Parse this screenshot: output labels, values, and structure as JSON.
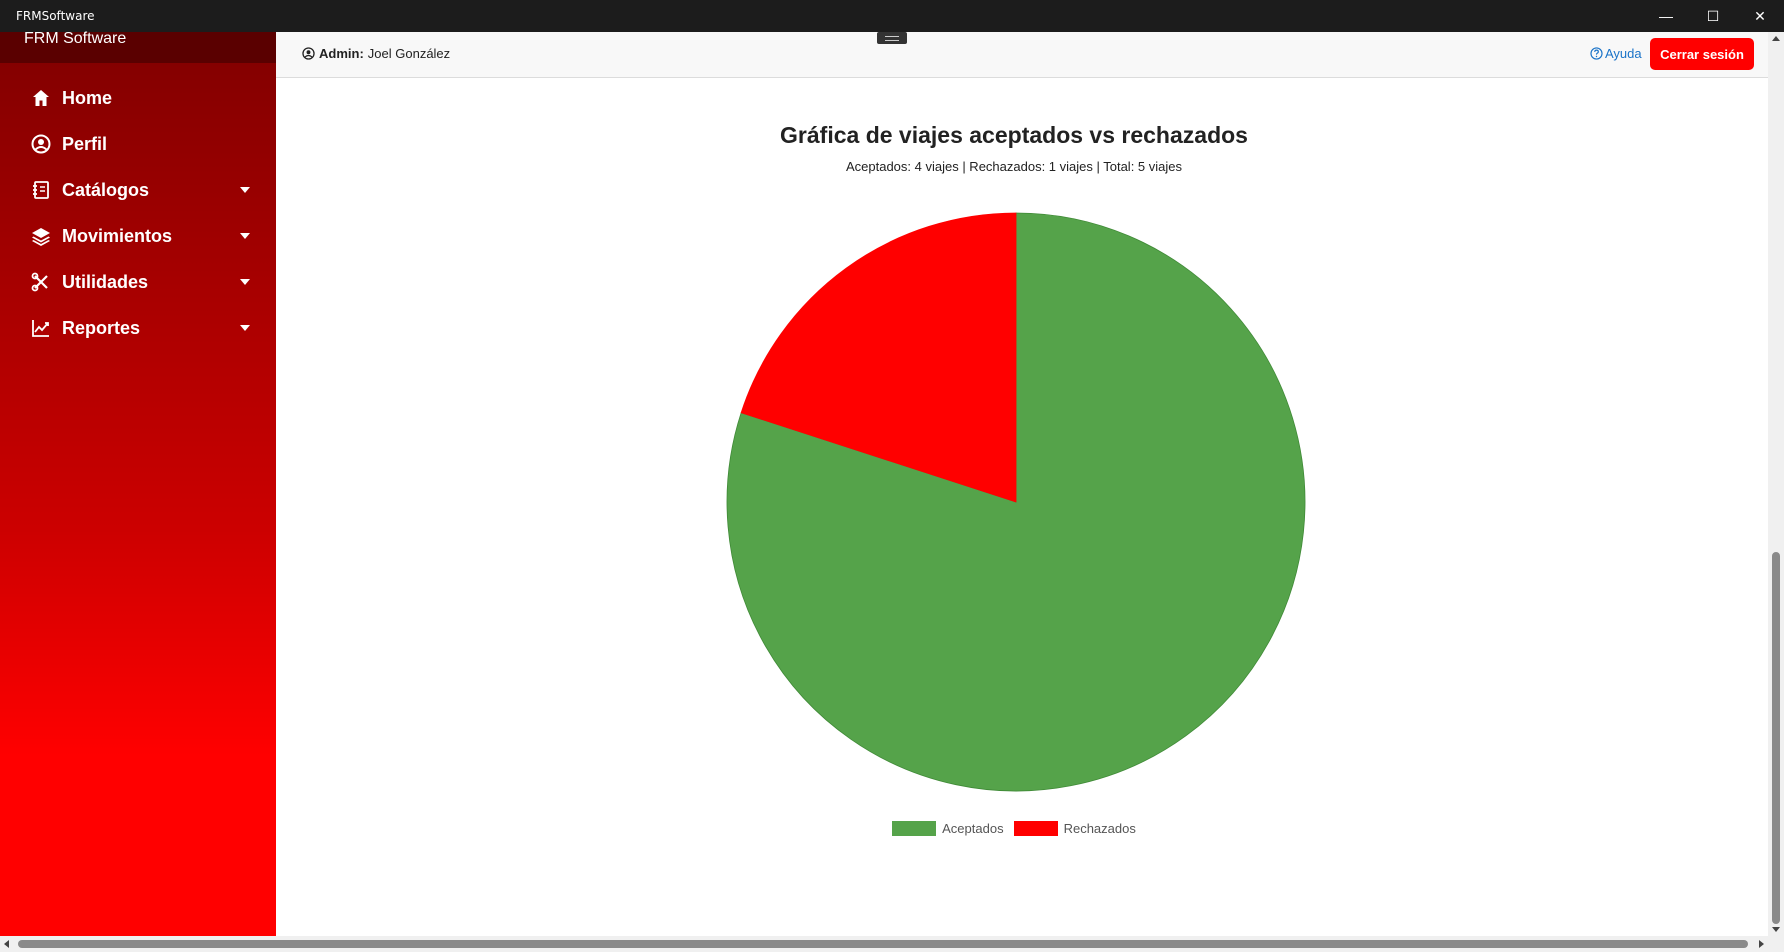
{
  "window": {
    "title": "FRMSoftware",
    "minimize_label": "—",
    "maximize_label": "☐",
    "close_label": "✕"
  },
  "sidebar": {
    "brand": "FRM Software",
    "items": [
      {
        "label": "Home",
        "icon": "home-icon",
        "has_dropdown": false
      },
      {
        "label": "Perfil",
        "icon": "user-circle-icon",
        "has_dropdown": false
      },
      {
        "label": "Catálogos",
        "icon": "catalog-icon",
        "has_dropdown": true
      },
      {
        "label": "Movimientos",
        "icon": "layers-icon",
        "has_dropdown": true
      },
      {
        "label": "Utilidades",
        "icon": "tools-icon",
        "has_dropdown": true
      },
      {
        "label": "Reportes",
        "icon": "chart-line-icon",
        "has_dropdown": true
      }
    ]
  },
  "header": {
    "admin_label": "Admin:",
    "admin_name": "Joel González",
    "help_label": "Ayuda",
    "logout_label": "Cerrar sesión"
  },
  "colors": {
    "accepted": "#55a34a",
    "rejected": "#ff0000",
    "accent": "#ff0000"
  },
  "chart_data": {
    "type": "pie",
    "title": "Gráfica de viajes aceptados vs rechazados",
    "subtitle": "Aceptados: 4 viajes | Rechazados: 1 viajes | Total: 5 viajes",
    "categories": [
      "Aceptados",
      "Rechazados"
    ],
    "values": [
      4,
      1
    ],
    "colors": [
      "#55a34a",
      "#ff0000"
    ],
    "legend_position": "bottom"
  }
}
